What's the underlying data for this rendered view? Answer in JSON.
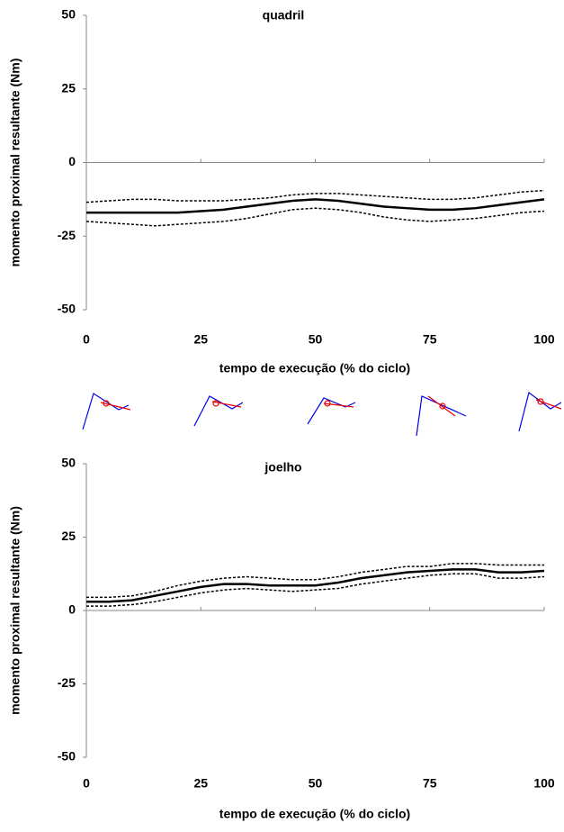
{
  "chart_data": [
    {
      "type": "line",
      "title": "quadril",
      "y_label": "momento proximal resultante (Nm)",
      "x_label": "tempo de execução (% do ciclo)",
      "x": [
        0,
        5,
        10,
        15,
        20,
        25,
        30,
        35,
        40,
        45,
        50,
        55,
        60,
        65,
        70,
        75,
        80,
        85,
        90,
        95,
        100
      ],
      "xlim": [
        0,
        100
      ],
      "xticks": [
        0,
        25,
        50,
        75,
        100
      ],
      "ylim": [
        -50,
        50
      ],
      "yticks": [
        -50,
        -25,
        0,
        25,
        50
      ],
      "series": [
        {
          "color": "#000000",
          "line_style": "solid",
          "values": [
            -17,
            -17,
            -17,
            -17,
            -17,
            -16.5,
            -16,
            -15,
            -14,
            -13,
            -12.5,
            -13,
            -14,
            -15,
            -15.5,
            -16,
            -16,
            -15.5,
            -14.5,
            -13.5,
            -12.5
          ]
        },
        {
          "color": "#000000",
          "line_style": "dotted",
          "values": [
            -13.5,
            -13,
            -12.5,
            -12.5,
            -13,
            -13,
            -13,
            -12.5,
            -12,
            -11,
            -10.5,
            -10.5,
            -11,
            -11.5,
            -12,
            -12.5,
            -12.5,
            -12,
            -11,
            -10,
            -9.5
          ]
        },
        {
          "color": "#000000",
          "line_style": "dotted",
          "values": [
            -20,
            -20.5,
            -21,
            -21.5,
            -21,
            -20.5,
            -20,
            -19,
            -17.5,
            -16,
            -15.5,
            -16,
            -17,
            -18.5,
            -19.5,
            -20,
            -19.5,
            -19,
            -18,
            -17,
            -16.5
          ]
        }
      ]
    },
    {
      "type": "line",
      "title": "joelho",
      "y_label": "momento proximal resultante (Nm)",
      "x_label": "tempo de execução (% do ciclo)",
      "x": [
        0,
        5,
        10,
        15,
        20,
        25,
        30,
        35,
        40,
        45,
        50,
        55,
        60,
        65,
        70,
        75,
        80,
        85,
        90,
        95,
        100
      ],
      "xlim": [
        0,
        100
      ],
      "xticks": [
        0,
        25,
        50,
        75,
        100
      ],
      "ylim": [
        -50,
        50
      ],
      "yticks": [
        -50,
        -25,
        0,
        25,
        50
      ],
      "series": [
        {
          "color": "#000000",
          "line_style": "solid",
          "values": [
            3,
            3,
            3.5,
            5,
            6.5,
            8,
            9,
            9,
            8.5,
            8.5,
            8.5,
            9.5,
            11,
            12,
            13,
            13.5,
            14,
            14,
            13,
            13,
            13.5
          ]
        },
        {
          "color": "#000000",
          "line_style": "dotted",
          "values": [
            4.5,
            4.5,
            5,
            6.5,
            8.5,
            10,
            11,
            11.5,
            11,
            10.5,
            10.5,
            11.5,
            13,
            14,
            15,
            15,
            16,
            16,
            15.5,
            15.5,
            15.5
          ]
        },
        {
          "color": "#000000",
          "line_style": "dotted",
          "values": [
            1.5,
            1.5,
            2,
            3,
            4.5,
            6,
            7,
            7.5,
            7,
            6.5,
            7,
            7.5,
            9,
            10,
            11,
            12,
            12.5,
            12.5,
            11,
            11,
            11.5
          ]
        }
      ]
    }
  ]
}
